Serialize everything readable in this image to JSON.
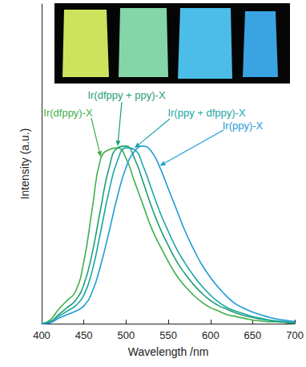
{
  "chart_data": {
    "type": "line",
    "x_label": "Wavelength /nm",
    "y_label": "Intensity (a.u.)",
    "xlim": [
      400,
      700
    ],
    "xticks": [
      400,
      450,
      500,
      550,
      600,
      650,
      700
    ],
    "ylim": [
      0,
      1.8
    ],
    "tick_labels": "x",
    "grid": false,
    "x": [
      400,
      410,
      420,
      430,
      440,
      450,
      460,
      470,
      480,
      490,
      500,
      510,
      520,
      530,
      540,
      550,
      560,
      570,
      580,
      590,
      600,
      610,
      620,
      630,
      640,
      650,
      660,
      670,
      680,
      690,
      700
    ],
    "series": [
      {
        "name": "Ir(dfppy)-X",
        "color": "#3fae49",
        "values": [
          0,
          0.02,
          0.08,
          0.13,
          0.18,
          0.35,
          0.65,
          0.93,
          0.98,
          0.99,
          0.93,
          0.8,
          0.67,
          0.54,
          0.44,
          0.35,
          0.27,
          0.21,
          0.16,
          0.12,
          0.09,
          0.07,
          0.05,
          0.04,
          0.03,
          0.02,
          0.015,
          0.01,
          0.01,
          0.005,
          0
        ]
      },
      {
        "name": "Ir(dfppy + ppy)-X",
        "color": "#1f9e72",
        "values": [
          0,
          0.01,
          0.05,
          0.09,
          0.13,
          0.22,
          0.4,
          0.65,
          0.88,
          0.99,
          1.0,
          0.93,
          0.8,
          0.66,
          0.54,
          0.44,
          0.35,
          0.28,
          0.22,
          0.17,
          0.13,
          0.1,
          0.08,
          0.06,
          0.045,
          0.035,
          0.025,
          0.018,
          0.012,
          0.008,
          0.005
        ]
      },
      {
        "name": "Ir(ppy + dfppy)-X",
        "color": "#1aa5a5",
        "values": [
          0,
          0.01,
          0.04,
          0.07,
          0.1,
          0.16,
          0.3,
          0.52,
          0.75,
          0.92,
          0.99,
          0.98,
          0.89,
          0.76,
          0.63,
          0.52,
          0.42,
          0.34,
          0.27,
          0.21,
          0.16,
          0.12,
          0.09,
          0.07,
          0.055,
          0.04,
          0.03,
          0.02,
          0.015,
          0.01,
          0.006
        ]
      },
      {
        "name": "Ir(ppy)-X",
        "color": "#1f9ad6",
        "values": [
          0,
          0.005,
          0.03,
          0.05,
          0.07,
          0.1,
          0.18,
          0.33,
          0.52,
          0.72,
          0.88,
          0.97,
          1.0,
          0.97,
          0.88,
          0.76,
          0.64,
          0.52,
          0.42,
          0.33,
          0.26,
          0.2,
          0.15,
          0.11,
          0.085,
          0.065,
          0.05,
          0.035,
          0.025,
          0.018,
          0.012
        ]
      }
    ]
  }
}
